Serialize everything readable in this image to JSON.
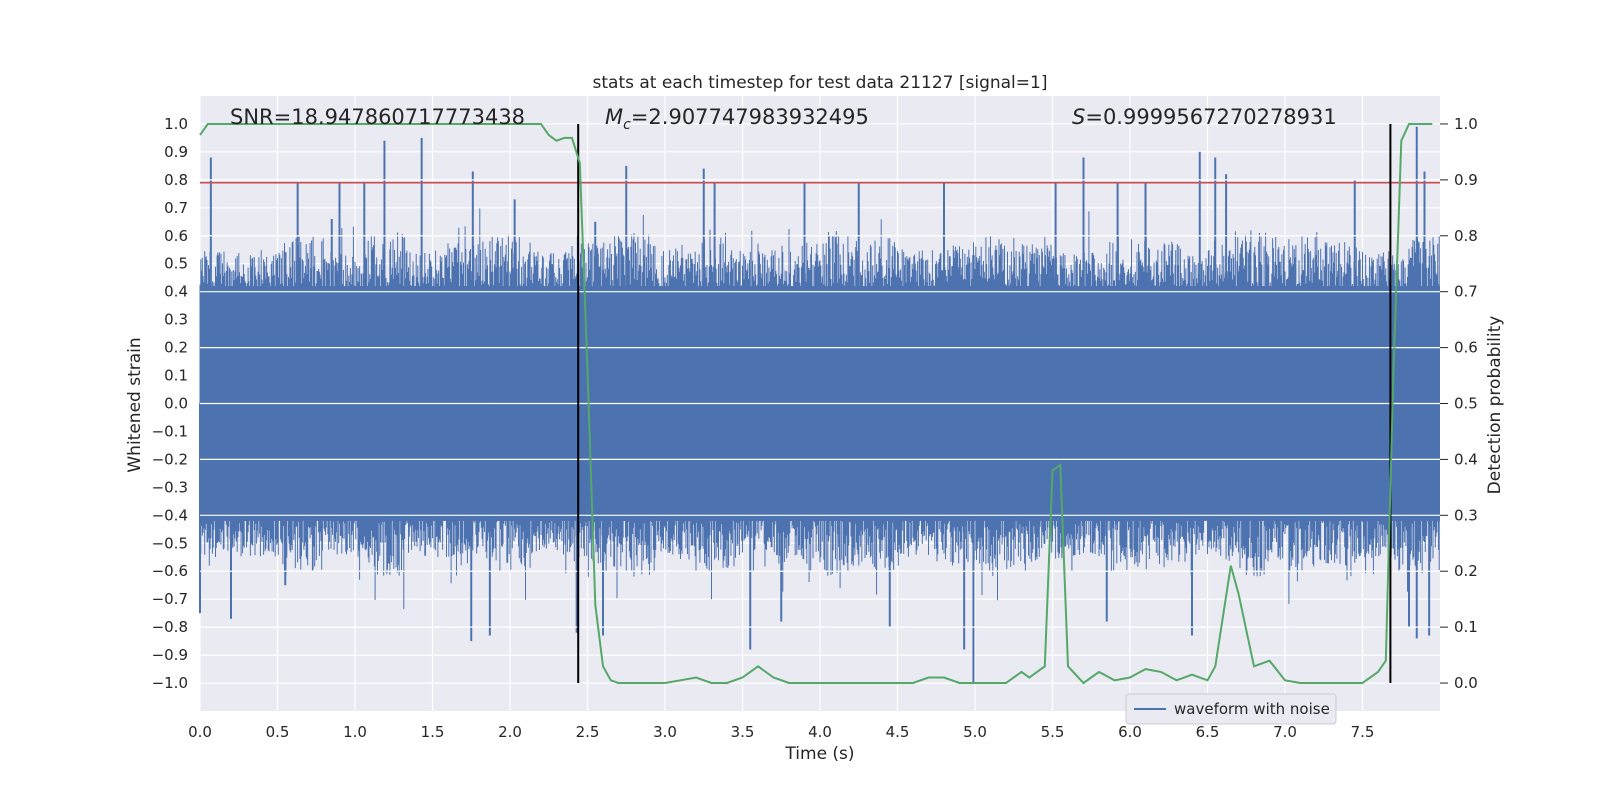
{
  "chart_data": {
    "type": "line",
    "title": "stats at each timestep for test data 21127 [signal=1]",
    "xlabel": "Time (s)",
    "ylabel": "Whitened strain",
    "ylabel_right": "Detection probability",
    "xlim": [
      0.0,
      8.0
    ],
    "ylim": [
      -1.1,
      1.1
    ],
    "ylim_right": [
      -0.05,
      1.05
    ],
    "x_ticks": [
      "0.0",
      "0.5",
      "1.0",
      "1.5",
      "2.0",
      "2.5",
      "3.0",
      "3.5",
      "4.0",
      "4.5",
      "5.0",
      "5.5",
      "6.0",
      "6.5",
      "7.0",
      "7.5"
    ],
    "x_tick_values": [
      0.0,
      0.5,
      1.0,
      1.5,
      2.0,
      2.5,
      3.0,
      3.5,
      4.0,
      4.5,
      5.0,
      5.5,
      6.0,
      6.5,
      7.0,
      7.5
    ],
    "y_ticks": [
      "1.0",
      "0.9",
      "0.8",
      "0.7",
      "0.6",
      "0.5",
      "0.4",
      "0.3",
      "0.2",
      "0.1",
      "0.0",
      "−0.1",
      "−0.2",
      "−0.3",
      "−0.4",
      "−0.5",
      "−0.6",
      "−0.7",
      "−0.8",
      "−0.9",
      "−1.0"
    ],
    "y_tick_values": [
      1.0,
      0.9,
      0.8,
      0.7,
      0.6,
      0.5,
      0.4,
      0.3,
      0.2,
      0.1,
      0.0,
      -0.1,
      -0.2,
      -0.3,
      -0.4,
      -0.5,
      -0.6,
      -0.7,
      -0.8,
      -0.9,
      -1.0
    ],
    "y2_ticks": [
      "1.0",
      "0.9",
      "0.8",
      "0.7",
      "0.6",
      "0.5",
      "0.4",
      "0.3",
      "0.2",
      "0.1",
      "0.0"
    ],
    "y2_tick_values": [
      1.0,
      0.9,
      0.8,
      0.7,
      0.6,
      0.5,
      0.4,
      0.3,
      0.2,
      0.1,
      0.0
    ],
    "annotations": {
      "snr": "SNR=18.947860717773438",
      "mc_symbol": "M",
      "mc_subscript": "c",
      "mc_value": "=2.907747983932495",
      "s_symbol": "S",
      "s_value": "=0.9999567270278931"
    },
    "threshold": {
      "y": 0.79,
      "color": "#c44e52"
    },
    "event_lines": {
      "x": [
        2.44,
        7.68
      ],
      "color": "#000000"
    },
    "waveform": {
      "name": "waveform with noise",
      "color": "#4c72b0",
      "description": "dense noise samples, typical amplitude ~0.45",
      "envelope_top": [
        0.55,
        0.55,
        0.6,
        0.55,
        0.62,
        0.55,
        0.58,
        0.6,
        0.55,
        0.58,
        0.62,
        0.57,
        0.6,
        0.55,
        0.58,
        0.62,
        0.6,
        0.55,
        0.58,
        0.6,
        0.57,
        0.55,
        0.6,
        0.58,
        0.55,
        0.62,
        0.6,
        0.58,
        0.55,
        0.6
      ],
      "spikes_up": [
        [
          0.07,
          0.88
        ],
        [
          0.63,
          0.79
        ],
        [
          0.85,
          0.66
        ],
        [
          0.9,
          0.79
        ],
        [
          1.06,
          0.79
        ],
        [
          1.19,
          0.94
        ],
        [
          1.43,
          0.95
        ],
        [
          1.76,
          0.83
        ],
        [
          2.03,
          0.73
        ],
        [
          2.55,
          0.65
        ],
        [
          2.75,
          0.85
        ],
        [
          3.25,
          0.84
        ],
        [
          3.32,
          0.79
        ],
        [
          3.9,
          0.79
        ],
        [
          4.25,
          0.79
        ],
        [
          4.8,
          0.79
        ],
        [
          5.52,
          0.79
        ],
        [
          5.7,
          0.88
        ],
        [
          5.92,
          0.79
        ],
        [
          6.1,
          0.79
        ],
        [
          6.45,
          0.9
        ],
        [
          6.55,
          0.88
        ],
        [
          6.62,
          0.82
        ],
        [
          7.45,
          0.8
        ],
        [
          7.85,
          0.99
        ],
        [
          7.9,
          0.83
        ]
      ],
      "spikes_down": [
        [
          0.0,
          -0.75
        ],
        [
          0.2,
          -0.77
        ],
        [
          0.55,
          -0.65
        ],
        [
          1.75,
          -0.85
        ],
        [
          1.87,
          -0.83
        ],
        [
          2.43,
          -0.82
        ],
        [
          2.6,
          -0.83
        ],
        [
          3.55,
          -0.88
        ],
        [
          3.75,
          -0.78
        ],
        [
          4.45,
          -0.8
        ],
        [
          4.93,
          -0.88
        ],
        [
          4.99,
          -1.0
        ],
        [
          5.85,
          -0.78
        ],
        [
          6.4,
          -0.83
        ],
        [
          7.8,
          -0.8
        ],
        [
          7.85,
          -0.84
        ],
        [
          7.93,
          -0.83
        ]
      ]
    },
    "detection_probability": {
      "color": "#55a868",
      "x": [
        0.0,
        0.05,
        0.1,
        0.2,
        0.3,
        0.4,
        0.5,
        0.6,
        0.7,
        0.8,
        0.9,
        1.0,
        1.1,
        1.2,
        1.3,
        1.4,
        1.5,
        1.6,
        1.7,
        1.8,
        1.9,
        2.0,
        2.1,
        2.2,
        2.25,
        2.3,
        2.35,
        2.4,
        2.45,
        2.5,
        2.55,
        2.6,
        2.65,
        2.7,
        2.8,
        2.9,
        3.0,
        3.1,
        3.2,
        3.3,
        3.4,
        3.5,
        3.55,
        3.6,
        3.7,
        3.8,
        3.9,
        4.0,
        4.1,
        4.2,
        4.3,
        4.4,
        4.5,
        4.6,
        4.7,
        4.8,
        4.9,
        5.0,
        5.1,
        5.2,
        5.3,
        5.35,
        5.45,
        5.5,
        5.55,
        5.6,
        5.7,
        5.8,
        5.9,
        6.0,
        6.1,
        6.2,
        6.3,
        6.4,
        6.5,
        6.55,
        6.65,
        6.7,
        6.8,
        6.9,
        7.0,
        7.1,
        7.2,
        7.3,
        7.4,
        7.5,
        7.6,
        7.65,
        7.7,
        7.75,
        7.8,
        7.85,
        7.9,
        7.95
      ],
      "y": [
        0.98,
        1.0,
        1.0,
        1.0,
        1.0,
        1.0,
        1.0,
        1.0,
        1.0,
        1.0,
        1.0,
        1.0,
        1.0,
        1.0,
        1.0,
        1.0,
        1.0,
        1.0,
        1.0,
        1.0,
        1.0,
        1.0,
        1.0,
        1.0,
        0.98,
        0.97,
        0.975,
        0.975,
        0.93,
        0.56,
        0.14,
        0.03,
        0.005,
        0.0,
        0.0,
        0.0,
        0.0,
        0.005,
        0.01,
        0.0,
        0.0,
        0.01,
        0.02,
        0.03,
        0.01,
        0.0,
        0.0,
        0.0,
        0.0,
        0.0,
        0.0,
        0.0,
        0.0,
        0.0,
        0.01,
        0.01,
        0.0,
        0.0,
        0.0,
        0.0,
        0.02,
        0.01,
        0.03,
        0.38,
        0.39,
        0.03,
        0.0,
        0.02,
        0.005,
        0.01,
        0.025,
        0.02,
        0.005,
        0.015,
        0.005,
        0.03,
        0.21,
        0.16,
        0.03,
        0.04,
        0.005,
        0.0,
        0.0,
        0.0,
        0.0,
        0.0,
        0.02,
        0.04,
        0.56,
        0.97,
        1.0,
        1.0,
        1.0,
        1.0
      ]
    },
    "legend": {
      "label": "waveform with noise",
      "position": "lower-right"
    },
    "grid": true
  }
}
